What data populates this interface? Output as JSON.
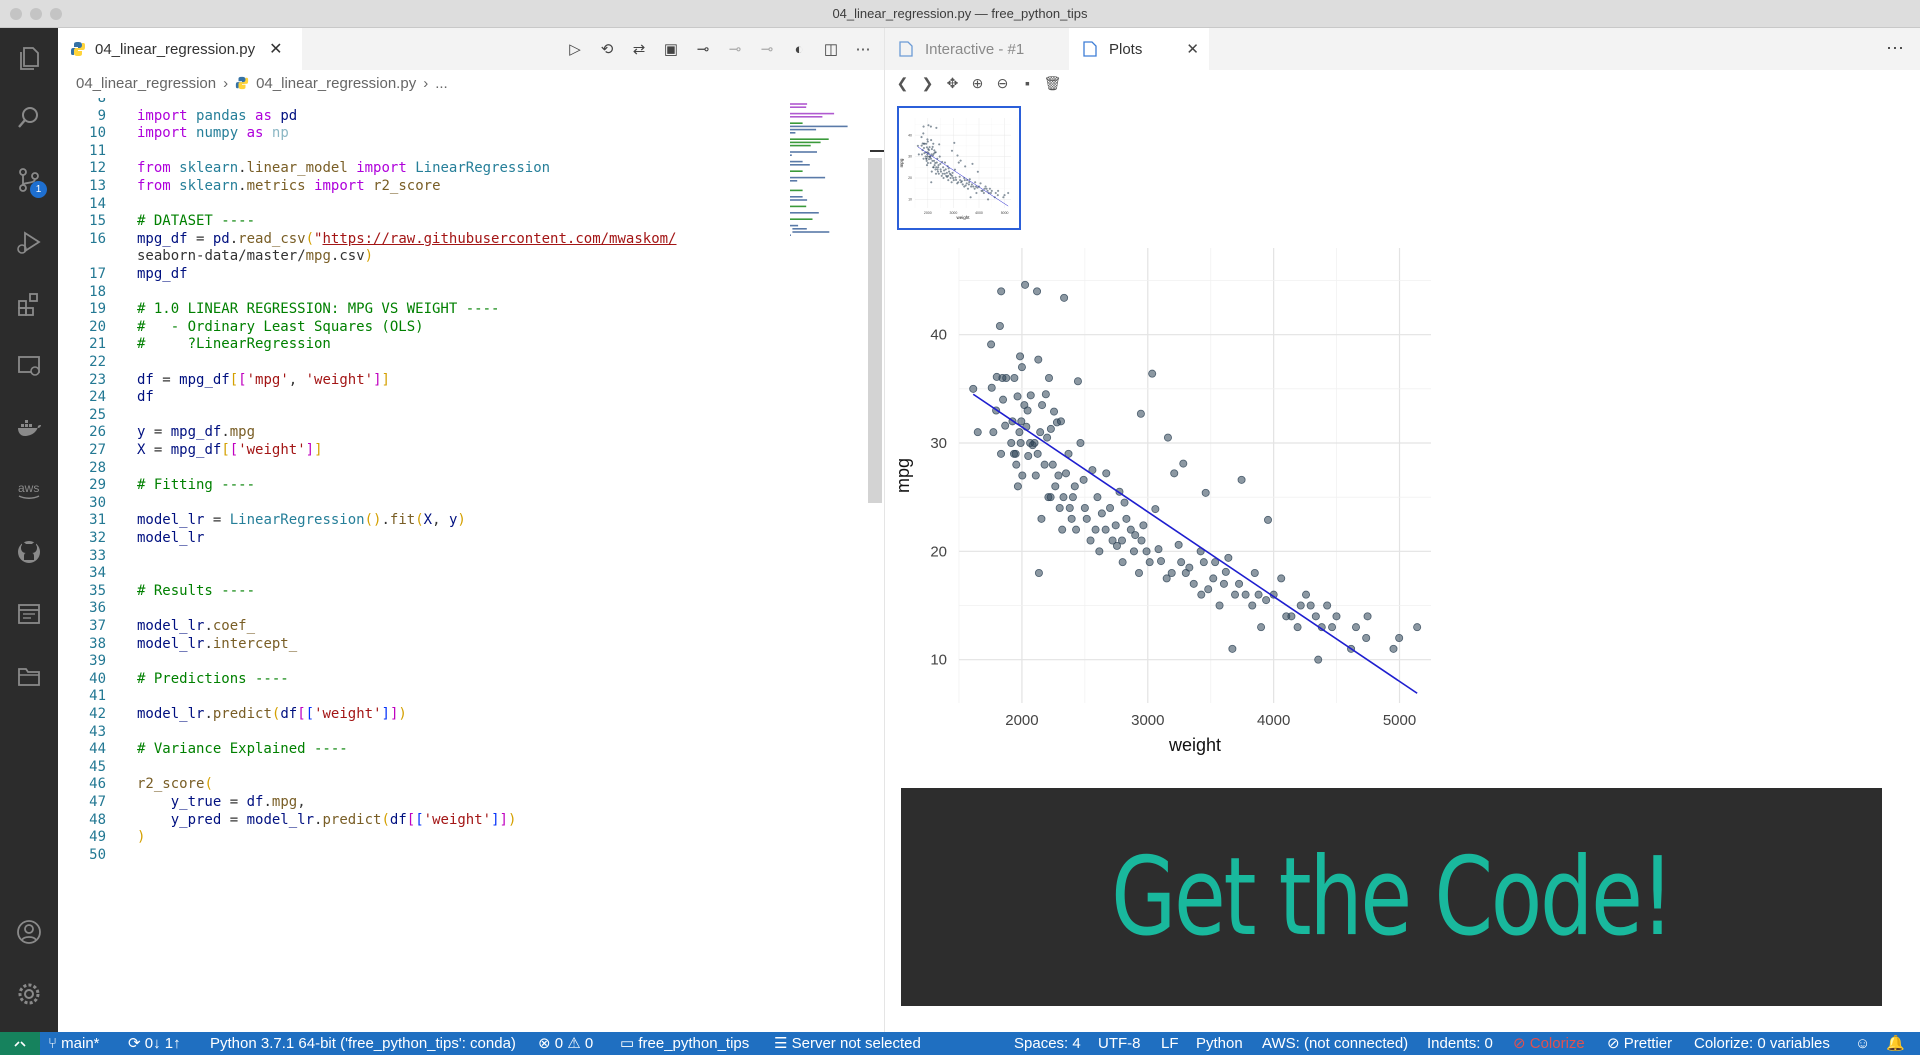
{
  "window": {
    "title": "04_linear_regression.py — free_python_tips"
  },
  "activity_bar": {
    "source_control_badge": "1"
  },
  "editor": {
    "tab": {
      "label": "04_linear_regression.py"
    },
    "breadcrumb": {
      "folder": "04_linear_regression",
      "file": "04_linear_regression.py",
      "tail": "..."
    },
    "lines": [
      {
        "n": "8",
        "c": ""
      },
      {
        "n": "9",
        "c": "import pandas as pd"
      },
      {
        "n": "10",
        "c": "import numpy as np"
      },
      {
        "n": "11",
        "c": ""
      },
      {
        "n": "12",
        "c": "from sklearn.linear_model import LinearRegression"
      },
      {
        "n": "13",
        "c": "from sklearn.metrics import r2_score"
      },
      {
        "n": "14",
        "c": ""
      },
      {
        "n": "15",
        "c": "# DATASET ----"
      },
      {
        "n": "16",
        "c": "mpg_df = pd.read_csv(\"https://raw.githubusercontent.com/mwaskom/"
      },
      {
        "n": "",
        "c": "seaborn-data/master/mpg.csv\")"
      },
      {
        "n": "17",
        "c": "mpg_df"
      },
      {
        "n": "18",
        "c": ""
      },
      {
        "n": "19",
        "c": "# 1.0 LINEAR REGRESSION: MPG VS WEIGHT ----"
      },
      {
        "n": "20",
        "c": "#   - Ordinary Least Squares (OLS)"
      },
      {
        "n": "21",
        "c": "#     ?LinearRegression"
      },
      {
        "n": "22",
        "c": ""
      },
      {
        "n": "23",
        "c": "df = mpg_df[['mpg', 'weight']]"
      },
      {
        "n": "24",
        "c": "df"
      },
      {
        "n": "25",
        "c": ""
      },
      {
        "n": "26",
        "c": "y = mpg_df.mpg"
      },
      {
        "n": "27",
        "c": "X = mpg_df[['weight']]"
      },
      {
        "n": "28",
        "c": ""
      },
      {
        "n": "29",
        "c": "# Fitting ----"
      },
      {
        "n": "30",
        "c": ""
      },
      {
        "n": "31",
        "c": "model_lr = LinearRegression().fit(X, y)"
      },
      {
        "n": "32",
        "c": "model_lr"
      },
      {
        "n": "33",
        "c": ""
      },
      {
        "n": "34",
        "c": ""
      },
      {
        "n": "35",
        "c": "# Results ----"
      },
      {
        "n": "36",
        "c": ""
      },
      {
        "n": "37",
        "c": "model_lr.coef_"
      },
      {
        "n": "38",
        "c": "model_lr.intercept_"
      },
      {
        "n": "39",
        "c": ""
      },
      {
        "n": "40",
        "c": "# Predictions ----"
      },
      {
        "n": "41",
        "c": ""
      },
      {
        "n": "42",
        "c": "model_lr.predict(df[['weight']])"
      },
      {
        "n": "43",
        "c": ""
      },
      {
        "n": "44",
        "c": "# Variance Explained ----"
      },
      {
        "n": "45",
        "c": ""
      },
      {
        "n": "46",
        "c": "r2_score("
      },
      {
        "n": "47",
        "c": "    y_true = df.mpg,"
      },
      {
        "n": "48",
        "c": "    y_pred = model_lr.predict(df[['weight']])"
      },
      {
        "n": "49",
        "c": ")"
      },
      {
        "n": "50",
        "c": ""
      }
    ]
  },
  "panel": {
    "tabs": [
      {
        "label": "Interactive - #1"
      },
      {
        "label": "Plots"
      }
    ]
  },
  "chart_data": {
    "type": "scatter",
    "xlabel": "weight",
    "ylabel": "mpg",
    "xlim": [
      1500,
      5250
    ],
    "ylim": [
      6,
      48
    ],
    "xticks": [
      "2000",
      "3000",
      "4000",
      "5000"
    ],
    "yticks": [
      "10",
      "20",
      "30",
      "40"
    ],
    "grid": true,
    "colors": {
      "points": "#2e4356",
      "line": "#1e1ecf"
    },
    "regression_line": {
      "x": [
        1613,
        5140
      ],
      "y": [
        34.5,
        6.9
      ]
    },
    "points": [
      [
        1613,
        35
      ],
      [
        1649,
        31
      ],
      [
        1755,
        39.1
      ],
      [
        1760,
        35.1
      ],
      [
        1773,
        31
      ],
      [
        1795,
        33
      ],
      [
        1800,
        36.1
      ],
      [
        1825,
        40.8
      ],
      [
        1835,
        44
      ],
      [
        1834,
        29
      ],
      [
        1845,
        36
      ],
      [
        1850,
        34
      ],
      [
        1867,
        31.6
      ],
      [
        1875,
        36
      ],
      [
        1915,
        30
      ],
      [
        1925,
        32
      ],
      [
        1937,
        29
      ],
      [
        1940,
        36
      ],
      [
        1950,
        29
      ],
      [
        1955,
        28
      ],
      [
        1965,
        34.3
      ],
      [
        1968,
        26
      ],
      [
        1980,
        31
      ],
      [
        1985,
        38
      ],
      [
        1990,
        30
      ],
      [
        1995,
        32
      ],
      [
        2000,
        37
      ],
      [
        2003,
        27
      ],
      [
        2019,
        33.5
      ],
      [
        2025,
        44.6
      ],
      [
        2035,
        31.5
      ],
      [
        2045,
        33
      ],
      [
        2050,
        28.8
      ],
      [
        2065,
        30
      ],
      [
        2070,
        34.4
      ],
      [
        2085,
        29.8
      ],
      [
        2100,
        30
      ],
      [
        2110,
        27
      ],
      [
        2120,
        44
      ],
      [
        2125,
        29
      ],
      [
        2130,
        37.7
      ],
      [
        2135,
        18
      ],
      [
        2145,
        31
      ],
      [
        2155,
        23
      ],
      [
        2160,
        33.5
      ],
      [
        2180,
        28
      ],
      [
        2190,
        34.5
      ],
      [
        2200,
        30.5
      ],
      [
        2210,
        25
      ],
      [
        2215,
        36
      ],
      [
        2228,
        25
      ],
      [
        2230,
        31.3
      ],
      [
        2245,
        28
      ],
      [
        2255,
        32.9
      ],
      [
        2265,
        26
      ],
      [
        2278,
        31.9
      ],
      [
        2290,
        27
      ],
      [
        2300,
        24
      ],
      [
        2310,
        32
      ],
      [
        2320,
        22
      ],
      [
        2330,
        25
      ],
      [
        2335,
        43.4
      ],
      [
        2350,
        27.2
      ],
      [
        2370,
        29
      ],
      [
        2380,
        24
      ],
      [
        2395,
        23
      ],
      [
        2405,
        25
      ],
      [
        2420,
        26
      ],
      [
        2430,
        22
      ],
      [
        2445,
        35.7
      ],
      [
        2465,
        30
      ],
      [
        2490,
        26.6
      ],
      [
        2500,
        24
      ],
      [
        2515,
        23
      ],
      [
        2545,
        21
      ],
      [
        2560,
        27.5
      ],
      [
        2585,
        22
      ],
      [
        2600,
        25
      ],
      [
        2615,
        20
      ],
      [
        2635,
        23.5
      ],
      [
        2665,
        22
      ],
      [
        2670,
        27.2
      ],
      [
        2700,
        24
      ],
      [
        2720,
        21
      ],
      [
        2745,
        22.4
      ],
      [
        2755,
        20.5
      ],
      [
        2775,
        25.5
      ],
      [
        2795,
        21
      ],
      [
        2800,
        19
      ],
      [
        2815,
        24.5
      ],
      [
        2830,
        23
      ],
      [
        2865,
        22
      ],
      [
        2890,
        20
      ],
      [
        2900,
        21.5
      ],
      [
        2930,
        18
      ],
      [
        2945,
        32.7
      ],
      [
        2950,
        21
      ],
      [
        2965,
        22.4
      ],
      [
        2990,
        20
      ],
      [
        3015,
        19
      ],
      [
        3035,
        36.4
      ],
      [
        3060,
        23.9
      ],
      [
        3085,
        20.2
      ],
      [
        3105,
        19.1
      ],
      [
        3150,
        17.5
      ],
      [
        3160,
        30.5
      ],
      [
        3190,
        18
      ],
      [
        3210,
        27.2
      ],
      [
        3245,
        20.6
      ],
      [
        3265,
        19
      ],
      [
        3282,
        28.1
      ],
      [
        3302,
        18
      ],
      [
        3330,
        18.5
      ],
      [
        3365,
        17
      ],
      [
        3420,
        20
      ],
      [
        3425,
        16
      ],
      [
        3445,
        19
      ],
      [
        3460,
        25.4
      ],
      [
        3480,
        16.5
      ],
      [
        3520,
        17.5
      ],
      [
        3535,
        19
      ],
      [
        3570,
        15
      ],
      [
        3605,
        17
      ],
      [
        3620,
        18.1
      ],
      [
        3640,
        19.4
      ],
      [
        3672,
        11
      ],
      [
        3693,
        16
      ],
      [
        3725,
        17
      ],
      [
        3745,
        26.6
      ],
      [
        3777,
        16
      ],
      [
        3830,
        15
      ],
      [
        3850,
        18
      ],
      [
        3880,
        16
      ],
      [
        3900,
        13
      ],
      [
        3940,
        15.5
      ],
      [
        3955,
        22.9
      ],
      [
        4000,
        16
      ],
      [
        4060,
        17.5
      ],
      [
        4100,
        14
      ],
      [
        4141,
        14
      ],
      [
        4190,
        13
      ],
      [
        4215,
        15
      ],
      [
        4257,
        16
      ],
      [
        4294,
        15
      ],
      [
        4335,
        14
      ],
      [
        4354,
        10
      ],
      [
        4382,
        13
      ],
      [
        4425,
        15
      ],
      [
        4464,
        13
      ],
      [
        4499,
        14
      ],
      [
        4615,
        11
      ],
      [
        4654,
        13
      ],
      [
        4735,
        12
      ],
      [
        4746,
        14
      ],
      [
        4952,
        11
      ],
      [
        4997,
        12
      ],
      [
        5140,
        13
      ]
    ]
  },
  "promo": {
    "text": "Get the Code!"
  },
  "status_bar": {
    "branch": "main*",
    "sync": "0↓ 1↑",
    "interpreter": "Python 3.7.1 64-bit ('free_python_tips': conda)",
    "problems": "⊗ 0 ⚠ 0",
    "folder": "free_python_tips",
    "server": "Server not selected",
    "spaces": "Spaces: 4",
    "encoding": "UTF-8",
    "eol": "LF",
    "language": "Python",
    "aws": "AWS: (not connected)",
    "indents": "Indents: 0",
    "colorize": "Colorize",
    "prettier": "Prettier",
    "colorize_vars": "Colorize: 0 variables"
  }
}
